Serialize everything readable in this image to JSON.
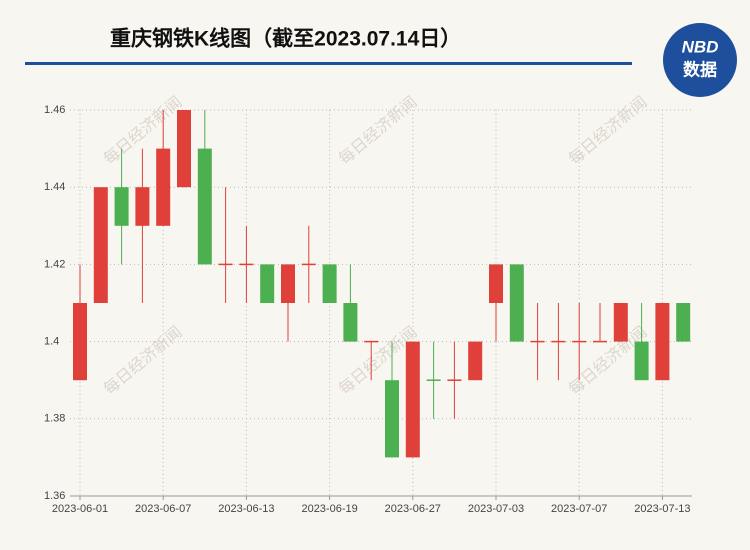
{
  "chart_data": {
    "type": "candlestick",
    "title": "重庆钢铁K线图（截至2023.07.14日）",
    "watermark": "每日经济新闻",
    "logo": {
      "top": "NBD",
      "bottom": "数据"
    },
    "categories": [
      "2023-06-01",
      null,
      null,
      null,
      "2023-06-07",
      null,
      null,
      null,
      "2023-06-13",
      null,
      null,
      null,
      "2023-06-19",
      null,
      null,
      null,
      "2023-06-27",
      null,
      null,
      null,
      "2023-07-03",
      null,
      null,
      null,
      "2023-07-07",
      null,
      null,
      null,
      "2023-07-13",
      null
    ],
    "open": [
      1.39,
      1.41,
      1.44,
      1.43,
      1.43,
      1.44,
      1.45,
      1.42,
      1.42,
      1.42,
      1.41,
      1.42,
      1.42,
      1.41,
      1.4,
      1.39,
      1.37,
      1.39,
      1.39,
      1.39,
      1.41,
      1.42,
      1.4,
      1.4,
      1.4,
      1.4,
      1.4,
      1.4,
      1.39,
      1.41
    ],
    "high": [
      1.42,
      1.44,
      1.45,
      1.45,
      1.46,
      1.46,
      1.46,
      1.44,
      1.43,
      1.42,
      1.42,
      1.43,
      1.42,
      1.42,
      1.4,
      1.4,
      1.4,
      1.4,
      1.4,
      1.4,
      1.42,
      1.42,
      1.41,
      1.41,
      1.41,
      1.41,
      1.41,
      1.41,
      1.41,
      1.41
    ],
    "low": [
      1.39,
      1.41,
      1.42,
      1.41,
      1.43,
      1.44,
      1.42,
      1.41,
      1.41,
      1.41,
      1.4,
      1.41,
      1.41,
      1.4,
      1.39,
      1.37,
      1.37,
      1.38,
      1.38,
      1.39,
      1.4,
      1.4,
      1.39,
      1.39,
      1.39,
      1.4,
      1.4,
      1.39,
      1.39,
      1.4
    ],
    "close": [
      1.41,
      1.44,
      1.43,
      1.44,
      1.45,
      1.46,
      1.42,
      1.42,
      1.42,
      1.41,
      1.42,
      1.42,
      1.41,
      1.4,
      1.4,
      1.37,
      1.4,
      1.39,
      1.39,
      1.4,
      1.42,
      1.4,
      1.4,
      1.4,
      1.4,
      1.4,
      1.41,
      1.39,
      1.41,
      1.4
    ],
    "colors": [
      "#e0403a",
      "#e0403a",
      "#4caf50",
      "#e0403a",
      "#e0403a",
      "#e0403a",
      "#4caf50",
      "#e0403a",
      "#e0403a",
      "#4caf50",
      "#e0403a",
      "#e0403a",
      "#4caf50",
      "#4caf50",
      "#e0403a",
      "#4caf50",
      "#e0403a",
      "#4caf50",
      "#e0403a",
      "#e0403a",
      "#e0403a",
      "#4caf50",
      "#e0403a",
      "#e0403a",
      "#e0403a",
      "#e0403a",
      "#e0403a",
      "#4caf50",
      "#e0403a",
      "#4caf50"
    ],
    "ylim": [
      1.36,
      1.46
    ],
    "yticks": [
      1.36,
      1.38,
      1.4,
      1.42,
      1.44,
      1.46
    ],
    "grid": true
  }
}
